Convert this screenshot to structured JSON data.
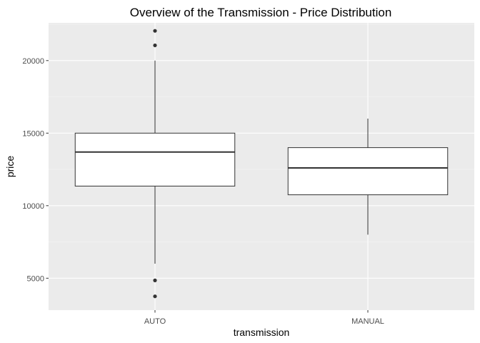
{
  "chart_data": {
    "type": "boxplot",
    "title": "Overview of the Transmission - Price Distribution",
    "xlabel": "transmission",
    "ylabel": "price",
    "categories": [
      "AUTO",
      "MANUAL"
    ],
    "ylim": [
      2800,
      22600
    ],
    "yticks": [
      5000,
      10000,
      15000,
      20000
    ],
    "ytick_labels": [
      "5000",
      "10000",
      "15000",
      "20000"
    ],
    "boxes": [
      {
        "category": "AUTO",
        "whisker_low": 6000,
        "q1": 11350,
        "median": 13700,
        "q3": 15000,
        "whisker_high": 20000,
        "outliers": [
          22050,
          21050,
          4850,
          3750
        ]
      },
      {
        "category": "MANUAL",
        "whisker_low": 8000,
        "q1": 10750,
        "median": 12600,
        "q3": 14000,
        "whisker_high": 16000,
        "outliers": []
      }
    ],
    "grid": true,
    "legend": "none",
    "colors": {
      "panel_background": "#EBEBEB",
      "grid_major": "#FFFFFF",
      "grid_minor": "#F5F5F5",
      "box_fill": "#FFFFFF",
      "box_line": "#333333",
      "outlier": "#333333",
      "tick_text": "#4D4D4D",
      "tick_mark": "#333333"
    }
  }
}
